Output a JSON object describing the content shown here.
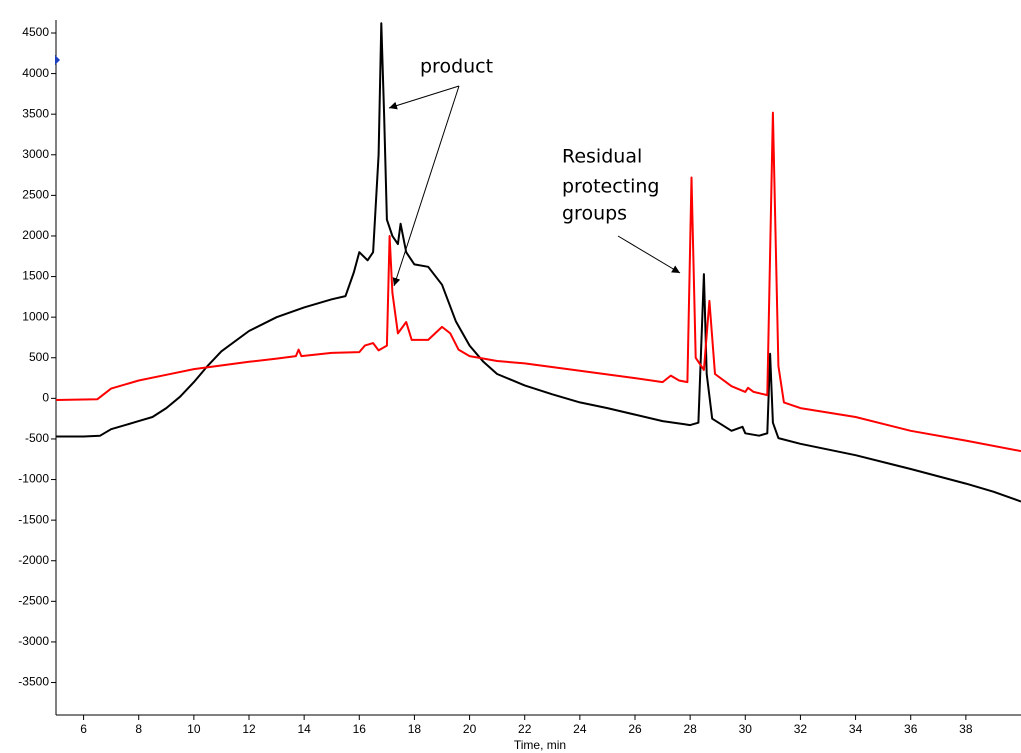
{
  "chart_data": {
    "type": "line",
    "x_label": "Time, min",
    "annotations": [
      {
        "lines": [
          "product"
        ]
      },
      {
        "lines": [
          "Residual",
          "protecting",
          "groups"
        ]
      }
    ],
    "xlim": [
      5,
      40
    ],
    "ylim": [
      -3900,
      4660
    ],
    "xticks": [
      6,
      8,
      10,
      12,
      14,
      16,
      18,
      20,
      22,
      24,
      26,
      28,
      30,
      32,
      34,
      36,
      38
    ],
    "yticks": [
      -3500,
      -3000,
      -2500,
      -2000,
      -1500,
      -1000,
      -500,
      0,
      500,
      1000,
      1500,
      2000,
      2500,
      3000,
      3500,
      4000,
      4500
    ],
    "series": [
      {
        "color": "#000000",
        "x": [
          5,
          6,
          6.6,
          7,
          8,
          8.5,
          9,
          9.5,
          10,
          10.5,
          11,
          12,
          13,
          14,
          15,
          15.5,
          15.8,
          16,
          16.3,
          16.5,
          16.7,
          16.8,
          16.9,
          17,
          17.2,
          17.4,
          17.5,
          17.7,
          18,
          18.5,
          19,
          19.5,
          20,
          20.5,
          21,
          22,
          23,
          24,
          25,
          26,
          27,
          27.8,
          28,
          28.3,
          28.5,
          28.6,
          28.8,
          29.5,
          29.9,
          30,
          30.5,
          30.8,
          30.9,
          31,
          31.2,
          32,
          34,
          36,
          38,
          39,
          40
        ],
        "values": [
          -470,
          -470,
          -460,
          -380,
          -280,
          -230,
          -120,
          20,
          200,
          400,
          580,
          830,
          1000,
          1120,
          1220,
          1260,
          1550,
          1800,
          1700,
          1800,
          3000,
          4620,
          3500,
          2200,
          2000,
          1900,
          2150,
          1800,
          1650,
          1620,
          1400,
          950,
          650,
          450,
          300,
          160,
          50,
          -50,
          -120,
          -200,
          -280,
          -320,
          -330,
          -300,
          1530,
          300,
          -250,
          -400,
          -350,
          -430,
          -460,
          -430,
          550,
          -300,
          -490,
          -560,
          -700,
          -870,
          -1050,
          -1150,
          -1270
        ]
      },
      {
        "color": "#ff0000",
        "x": [
          5,
          6.5,
          7,
          8,
          9,
          10,
          12,
          13,
          13.7,
          13.8,
          13.9,
          15,
          16,
          16.2,
          16.5,
          16.7,
          17,
          17.1,
          17.2,
          17.4,
          17.7,
          17.9,
          18.5,
          19,
          19.3,
          19.6,
          20,
          21,
          22,
          24,
          26,
          27,
          27.3,
          27.6,
          27.9,
          28.05,
          28.2,
          28.5,
          28.7,
          28.9,
          29.5,
          30,
          30.1,
          30.3,
          30.8,
          31,
          31.2,
          31.4,
          32,
          34,
          36,
          38,
          40
        ],
        "values": [
          -20,
          -10,
          120,
          220,
          290,
          360,
          450,
          490,
          520,
          600,
          520,
          560,
          570,
          650,
          680,
          590,
          650,
          2000,
          1300,
          800,
          940,
          720,
          720,
          880,
          800,
          600,
          520,
          460,
          430,
          340,
          250,
          200,
          280,
          220,
          200,
          2720,
          500,
          350,
          1200,
          300,
          150,
          80,
          130,
          80,
          40,
          3520,
          400,
          -50,
          -120,
          -230,
          -400,
          -520,
          -650
        ]
      }
    ]
  }
}
